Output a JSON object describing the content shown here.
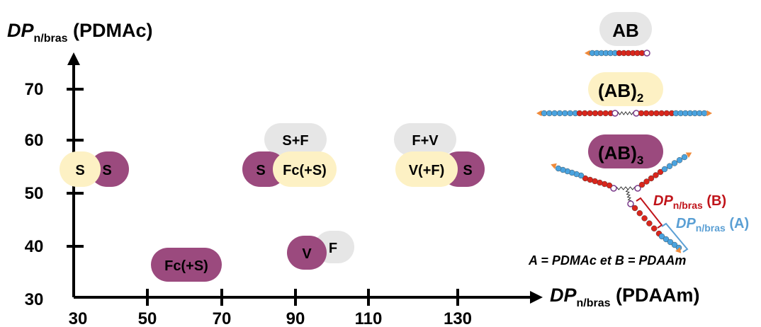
{
  "y_axis": {
    "label_italic": "DP",
    "label_sub": "n/bras",
    "label_tail": " (PDMAc)",
    "ticks": [
      "30",
      "40",
      "50",
      "60",
      "70"
    ]
  },
  "x_axis": {
    "label_italic": "DP",
    "label_sub": "n/bras",
    "label_tail": " (PDAAm)",
    "ticks": [
      "30",
      "50",
      "70",
      "90",
      "110",
      "130"
    ]
  },
  "colors": {
    "purple": "#9b4a7e",
    "cream": "#fdf1c4",
    "grey": "#e6e6e6",
    "red_bead": "#d9261c",
    "blue_bead": "#4aa3df",
    "end_orange": "#f08a3a",
    "core_purple": "#7a3a8a",
    "label_red": "#c0141a",
    "label_blue": "#5a9fd4"
  },
  "groups": [
    {
      "name": "group-30-55",
      "pills": [
        {
          "label": "S",
          "color": "cream"
        },
        {
          "label": "S",
          "color": "purple"
        }
      ]
    },
    {
      "name": "group-90-55",
      "pills": [
        {
          "label": "S+F",
          "color": "grey"
        },
        {
          "label": "S",
          "color": "purple"
        },
        {
          "label": "Fc(+S)",
          "color": "cream"
        }
      ]
    },
    {
      "name": "group-130-55",
      "pills": [
        {
          "label": "F+V",
          "color": "grey"
        },
        {
          "label": "S",
          "color": "purple"
        },
        {
          "label": "V(+F)",
          "color": "cream"
        }
      ]
    },
    {
      "name": "group-60-37",
      "pills": [
        {
          "label": "Fc(+S)",
          "color": "purple"
        }
      ]
    },
    {
      "name": "group-100-40",
      "pills": [
        {
          "label": "F",
          "color": "grey"
        },
        {
          "label": "V",
          "color": "purple"
        }
      ]
    }
  ],
  "legend": {
    "ab": "AB",
    "ab2_main": "(AB)",
    "ab2_sub": "2",
    "ab3_main": "(AB)",
    "ab3_sub": "3",
    "dp_b_italic": "DP",
    "dp_b_sub": "n/bras",
    "dp_b_tail": " (B)",
    "dp_a_italic": "DP",
    "dp_a_sub": "n/bras",
    "dp_a_tail": " (A)",
    "definition": "A = PDMAc et B = PDAAm"
  }
}
